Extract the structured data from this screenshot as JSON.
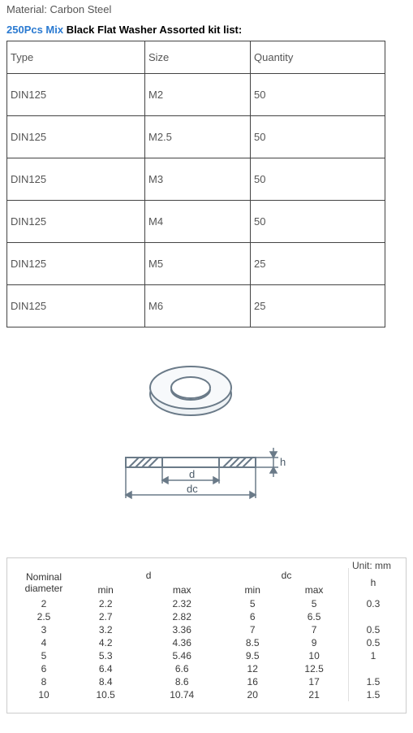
{
  "material_label": "Material: Carbon Steel",
  "title_blue": "250Pcs Mix",
  "title_black": " Black Flat Washer Assorted kit list:",
  "kit_table": {
    "headers": {
      "type": "Type",
      "size": "Size",
      "qty": "Quantity"
    },
    "rows": [
      {
        "type": "DIN125",
        "size": "M2",
        "qty": "50"
      },
      {
        "type": "DIN125",
        "size": "M2.5",
        "qty": "50"
      },
      {
        "type": "DIN125",
        "size": "M3",
        "qty": "50"
      },
      {
        "type": "DIN125",
        "size": "M4",
        "qty": "50"
      },
      {
        "type": "DIN125",
        "size": "M5",
        "qty": "25"
      },
      {
        "type": "DIN125",
        "size": "M6",
        "qty": "25"
      }
    ]
  },
  "diagram": {
    "labels": {
      "d": "d",
      "dc": "dc",
      "h": "h"
    },
    "colors": {
      "stroke": "#6a7a88",
      "hatch": "#6a7a88",
      "fill_washer_top": "#f5f7f9",
      "fill_washer_hole": "#ffffff"
    }
  },
  "spec_table": {
    "unit_label": "Unit: mm",
    "headers": {
      "nominal": "Nominal diameter",
      "d": "d",
      "d_min": "min",
      "d_max": "max",
      "dc": "dc",
      "dc_min": "min",
      "dc_max": "max",
      "h": "h"
    },
    "rows": [
      {
        "nom": "2",
        "dmin": "2.2",
        "dmax": "2.32",
        "dcmin": "5",
        "dcmax": "5",
        "h": "0.3"
      },
      {
        "nom": "2.5",
        "dmin": "2.7",
        "dmax": "2.82",
        "dcmin": "6",
        "dcmax": "6.5",
        "h": ""
      },
      {
        "nom": "3",
        "dmin": "3.2",
        "dmax": "3.36",
        "dcmin": "7",
        "dcmax": "7",
        "h": "0.5"
      },
      {
        "nom": "4",
        "dmin": "4.2",
        "dmax": "4.36",
        "dcmin": "8.5",
        "dcmax": "9",
        "h": "0.5"
      },
      {
        "nom": "5",
        "dmin": "5.3",
        "dmax": "5.46",
        "dcmin": "9.5",
        "dcmax": "10",
        "h": "1"
      },
      {
        "nom": "6",
        "dmin": "6.4",
        "dmax": "6.6",
        "dcmin": "12",
        "dcmax": "12.5",
        "h": ""
      },
      {
        "nom": "8",
        "dmin": "8.4",
        "dmax": "8.6",
        "dcmin": "16",
        "dcmax": "17",
        "h": "1.5"
      },
      {
        "nom": "10",
        "dmin": "10.5",
        "dmax": "10.74",
        "dcmin": "20",
        "dcmax": "21",
        "h": "1.5"
      }
    ]
  }
}
